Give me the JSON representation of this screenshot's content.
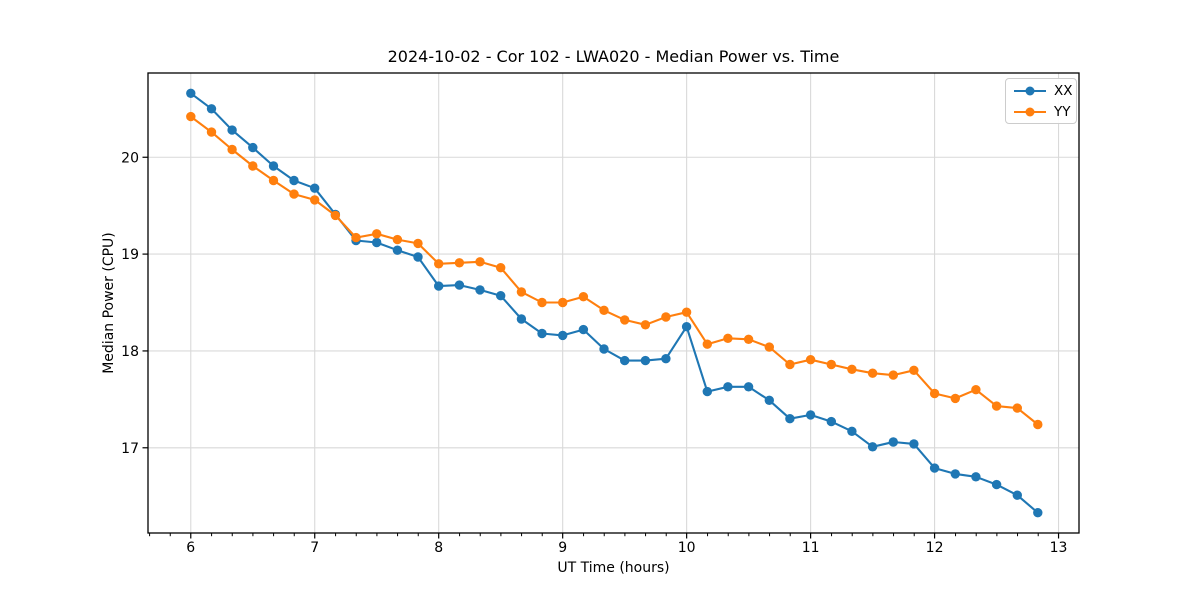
{
  "chart_data": {
    "type": "line",
    "title": "2024-10-02 - Cor 102 - LWA020 - Median Power vs. Time",
    "xlabel": "UT Time (hours)",
    "ylabel": "Median Power (CPU)",
    "xlim": [
      5.655,
      13.165
    ],
    "ylim": [
      16.12,
      20.87
    ],
    "xticks": [
      6,
      7,
      8,
      9,
      10,
      11,
      12,
      13
    ],
    "yticks": [
      17,
      18,
      19,
      20
    ],
    "x_minor_tick_step_hours": 0.1667,
    "grid": true,
    "legend_position": "upper right",
    "x": [
      6.0,
      6.167,
      6.333,
      6.5,
      6.667,
      6.833,
      7.0,
      7.167,
      7.333,
      7.5,
      7.667,
      7.833,
      8.0,
      8.167,
      8.333,
      8.5,
      8.667,
      8.833,
      9.0,
      9.167,
      9.333,
      9.5,
      9.667,
      9.833,
      10.0,
      10.167,
      10.333,
      10.5,
      10.667,
      10.833,
      11.0,
      11.167,
      11.333,
      11.5,
      11.667,
      11.833,
      12.0,
      12.167,
      12.333,
      12.5,
      12.667,
      12.833
    ],
    "series": [
      {
        "name": "XX",
        "color": "#1f77b4",
        "marker": "circle",
        "values": [
          20.66,
          20.5,
          20.28,
          20.1,
          19.91,
          19.76,
          19.68,
          19.41,
          19.14,
          19.12,
          19.04,
          18.97,
          18.67,
          18.68,
          18.63,
          18.57,
          18.33,
          18.18,
          18.16,
          18.22,
          18.02,
          17.9,
          17.9,
          17.92,
          18.25,
          17.58,
          17.63,
          17.63,
          17.49,
          17.3,
          17.34,
          17.27,
          17.17,
          17.01,
          17.06,
          17.04,
          16.79,
          16.73,
          16.7,
          16.62,
          16.51,
          16.33
        ]
      },
      {
        "name": "YY",
        "color": "#ff7f0e",
        "marker": "circle",
        "values": [
          20.42,
          20.26,
          20.08,
          19.91,
          19.76,
          19.62,
          19.56,
          19.4,
          19.17,
          19.21,
          19.15,
          19.11,
          18.9,
          18.91,
          18.92,
          18.86,
          18.61,
          18.5,
          18.5,
          18.56,
          18.42,
          18.32,
          18.27,
          18.35,
          18.4,
          18.07,
          18.13,
          18.12,
          18.04,
          17.86,
          17.91,
          17.86,
          17.81,
          17.77,
          17.75,
          17.8,
          17.56,
          17.51,
          17.6,
          17.43,
          17.41,
          17.24
        ]
      }
    ]
  },
  "colors": {
    "background": "#ffffff",
    "spine": "#000000",
    "grid": "#d9d9d9",
    "tick": "#000000",
    "text": "#000000"
  }
}
